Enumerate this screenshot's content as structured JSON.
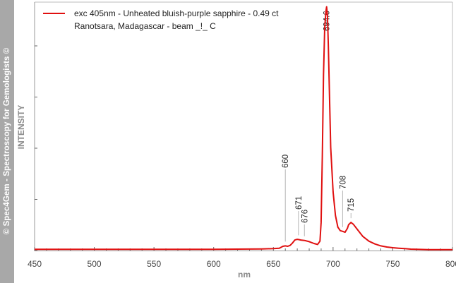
{
  "watermark": "© Spec4Gem - Spectroscopy for Gemologists ©",
  "chart_data": {
    "type": "line",
    "xlabel": "nm",
    "ylabel": "INTENSITY",
    "xlim": [
      450,
      800
    ],
    "ylim": [
      0,
      1.06
    ],
    "x_ticks": [
      450,
      500,
      550,
      600,
      650,
      700,
      750,
      800
    ],
    "y_ticks_labeled": false,
    "grid": false,
    "legend_position": "top-left",
    "series": [
      {
        "name": "exc 405nm - Unheated bluish-purple sapphire - 0.49 ct",
        "name_line2": "Ranotsara, Madagascar - beam _!_ C",
        "color": "#e01010",
        "x": [
          450,
          500,
          550,
          600,
          640,
          650,
          655,
          658,
          660,
          662,
          664,
          666,
          668,
          670,
          671,
          673,
          676,
          680,
          684,
          687,
          689,
          690,
          691,
          692,
          693,
          694,
          694.6,
          695.3,
          696,
          697,
          698,
          700,
          702,
          704,
          706,
          708,
          710,
          712,
          713,
          715,
          717,
          720,
          725,
          730,
          735,
          740,
          745,
          750,
          755,
          760,
          765,
          770,
          780,
          790,
          800
        ],
        "y": [
          0.005,
          0.005,
          0.005,
          0.005,
          0.007,
          0.008,
          0.01,
          0.018,
          0.02,
          0.018,
          0.022,
          0.032,
          0.045,
          0.048,
          0.047,
          0.045,
          0.043,
          0.038,
          0.03,
          0.026,
          0.04,
          0.12,
          0.4,
          0.75,
          0.95,
          1.02,
          1.04,
          1.0,
          0.88,
          0.66,
          0.44,
          0.25,
          0.15,
          0.1,
          0.085,
          0.082,
          0.078,
          0.095,
          0.11,
          0.12,
          0.112,
          0.092,
          0.06,
          0.04,
          0.028,
          0.02,
          0.015,
          0.012,
          0.01,
          0.008,
          0.006,
          0.005,
          0.004,
          0.004,
          0.004
        ]
      }
    ],
    "annotations": [
      {
        "text": "660",
        "x": 660
      },
      {
        "text": "671",
        "x": 671
      },
      {
        "text": "676",
        "x": 676
      },
      {
        "text": "694.6",
        "x": 694.6
      },
      {
        "text": "708",
        "x": 708
      },
      {
        "text": "715",
        "x": 715
      }
    ]
  }
}
